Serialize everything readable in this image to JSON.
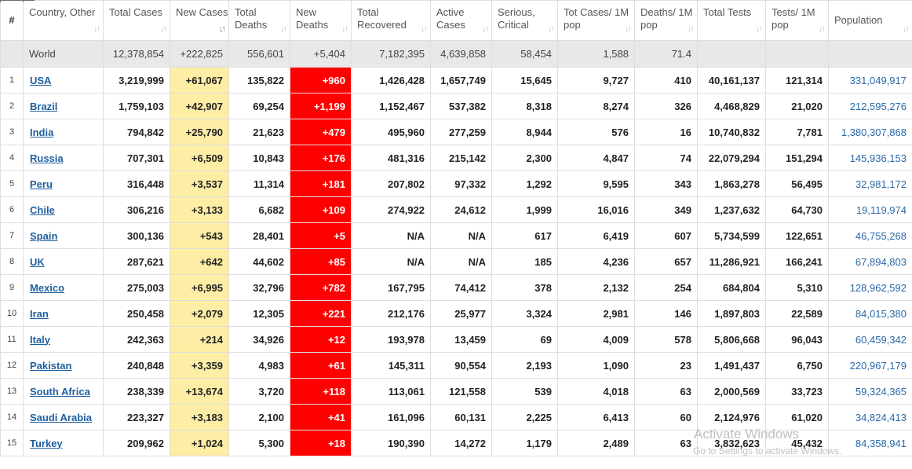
{
  "headers": [
    {
      "key": "idx",
      "label": "#"
    },
    {
      "key": "country",
      "label": "Country, Other",
      "sort": "neutral"
    },
    {
      "key": "total_cases",
      "label": "Total Cases",
      "sort": "neutral"
    },
    {
      "key": "new_cases",
      "label": "New Cases",
      "sort": "desc-active"
    },
    {
      "key": "total_deaths",
      "label": "Total Deaths",
      "sort": "neutral"
    },
    {
      "key": "new_deaths",
      "label": "New Deaths",
      "sort": "neutral"
    },
    {
      "key": "total_recovered",
      "label": "Total Recovered",
      "sort": "neutral"
    },
    {
      "key": "active_cases",
      "label": "Active Cases",
      "sort": "neutral"
    },
    {
      "key": "serious",
      "label": "Serious, Critical",
      "sort": "neutral"
    },
    {
      "key": "cases_1m",
      "label": "Tot Cases/ 1M pop",
      "sort": "neutral"
    },
    {
      "key": "deaths_1m",
      "label": "Deaths/ 1M pop",
      "sort": "neutral"
    },
    {
      "key": "total_tests",
      "label": "Total Tests",
      "sort": "neutral"
    },
    {
      "key": "tests_1m",
      "label": "Tests/ 1M pop",
      "sort": "neutral"
    },
    {
      "key": "population",
      "label": "Population",
      "sort": "neutral"
    }
  ],
  "world": {
    "country": "World",
    "total_cases": "12,378,854",
    "new_cases": "+222,825",
    "total_deaths": "556,601",
    "new_deaths": "+5,404",
    "total_recovered": "7,182,395",
    "active_cases": "4,639,858",
    "serious": "58,454",
    "cases_1m": "1,588",
    "deaths_1m": "71.4",
    "total_tests": "",
    "tests_1m": "",
    "population": ""
  },
  "rows": [
    {
      "idx": "1",
      "country": "USA",
      "total_cases": "3,219,999",
      "new_cases": "+61,067",
      "total_deaths": "135,822",
      "new_deaths": "+960",
      "total_recovered": "1,426,428",
      "active_cases": "1,657,749",
      "serious": "15,645",
      "cases_1m": "9,727",
      "deaths_1m": "410",
      "total_tests": "40,161,137",
      "tests_1m": "121,314",
      "population": "331,049,917"
    },
    {
      "idx": "2",
      "country": "Brazil",
      "total_cases": "1,759,103",
      "new_cases": "+42,907",
      "total_deaths": "69,254",
      "new_deaths": "+1,199",
      "total_recovered": "1,152,467",
      "active_cases": "537,382",
      "serious": "8,318",
      "cases_1m": "8,274",
      "deaths_1m": "326",
      "total_tests": "4,468,829",
      "tests_1m": "21,020",
      "population": "212,595,276"
    },
    {
      "idx": "3",
      "country": "India",
      "total_cases": "794,842",
      "new_cases": "+25,790",
      "total_deaths": "21,623",
      "new_deaths": "+479",
      "total_recovered": "495,960",
      "active_cases": "277,259",
      "serious": "8,944",
      "cases_1m": "576",
      "deaths_1m": "16",
      "total_tests": "10,740,832",
      "tests_1m": "7,781",
      "population": "1,380,307,868"
    },
    {
      "idx": "4",
      "country": "Russia",
      "total_cases": "707,301",
      "new_cases": "+6,509",
      "total_deaths": "10,843",
      "new_deaths": "+176",
      "total_recovered": "481,316",
      "active_cases": "215,142",
      "serious": "2,300",
      "cases_1m": "4,847",
      "deaths_1m": "74",
      "total_tests": "22,079,294",
      "tests_1m": "151,294",
      "population": "145,936,153"
    },
    {
      "idx": "5",
      "country": "Peru",
      "total_cases": "316,448",
      "new_cases": "+3,537",
      "total_deaths": "11,314",
      "new_deaths": "+181",
      "total_recovered": "207,802",
      "active_cases": "97,332",
      "serious": "1,292",
      "cases_1m": "9,595",
      "deaths_1m": "343",
      "total_tests": "1,863,278",
      "tests_1m": "56,495",
      "population": "32,981,172"
    },
    {
      "idx": "6",
      "country": "Chile",
      "total_cases": "306,216",
      "new_cases": "+3,133",
      "total_deaths": "6,682",
      "new_deaths": "+109",
      "total_recovered": "274,922",
      "active_cases": "24,612",
      "serious": "1,999",
      "cases_1m": "16,016",
      "deaths_1m": "349",
      "total_tests": "1,237,632",
      "tests_1m": "64,730",
      "population": "19,119,974"
    },
    {
      "idx": "7",
      "country": "Spain",
      "total_cases": "300,136",
      "new_cases": "+543",
      "total_deaths": "28,401",
      "new_deaths": "+5",
      "total_recovered": "N/A",
      "active_cases": "N/A",
      "serious": "617",
      "cases_1m": "6,419",
      "deaths_1m": "607",
      "total_tests": "5,734,599",
      "tests_1m": "122,651",
      "population": "46,755,268"
    },
    {
      "idx": "8",
      "country": "UK",
      "total_cases": "287,621",
      "new_cases": "+642",
      "total_deaths": "44,602",
      "new_deaths": "+85",
      "total_recovered": "N/A",
      "active_cases": "N/A",
      "serious": "185",
      "cases_1m": "4,236",
      "deaths_1m": "657",
      "total_tests": "11,286,921",
      "tests_1m": "166,241",
      "population": "67,894,803"
    },
    {
      "idx": "9",
      "country": "Mexico",
      "total_cases": "275,003",
      "new_cases": "+6,995",
      "total_deaths": "32,796",
      "new_deaths": "+782",
      "total_recovered": "167,795",
      "active_cases": "74,412",
      "serious": "378",
      "cases_1m": "2,132",
      "deaths_1m": "254",
      "total_tests": "684,804",
      "tests_1m": "5,310",
      "population": "128,962,592"
    },
    {
      "idx": "10",
      "country": "Iran",
      "total_cases": "250,458",
      "new_cases": "+2,079",
      "total_deaths": "12,305",
      "new_deaths": "+221",
      "total_recovered": "212,176",
      "active_cases": "25,977",
      "serious": "3,324",
      "cases_1m": "2,981",
      "deaths_1m": "146",
      "total_tests": "1,897,803",
      "tests_1m": "22,589",
      "population": "84,015,380"
    },
    {
      "idx": "11",
      "country": "Italy",
      "total_cases": "242,363",
      "new_cases": "+214",
      "total_deaths": "34,926",
      "new_deaths": "+12",
      "total_recovered": "193,978",
      "active_cases": "13,459",
      "serious": "69",
      "cases_1m": "4,009",
      "deaths_1m": "578",
      "total_tests": "5,806,668",
      "tests_1m": "96,043",
      "population": "60,459,342"
    },
    {
      "idx": "12",
      "country": "Pakistan",
      "total_cases": "240,848",
      "new_cases": "+3,359",
      "total_deaths": "4,983",
      "new_deaths": "+61",
      "total_recovered": "145,311",
      "active_cases": "90,554",
      "serious": "2,193",
      "cases_1m": "1,090",
      "deaths_1m": "23",
      "total_tests": "1,491,437",
      "tests_1m": "6,750",
      "population": "220,967,179"
    },
    {
      "idx": "13",
      "country": "South Africa",
      "total_cases": "238,339",
      "new_cases": "+13,674",
      "total_deaths": "3,720",
      "new_deaths": "+118",
      "total_recovered": "113,061",
      "active_cases": "121,558",
      "serious": "539",
      "cases_1m": "4,018",
      "deaths_1m": "63",
      "total_tests": "2,000,569",
      "tests_1m": "33,723",
      "population": "59,324,365"
    },
    {
      "idx": "14",
      "country": "Saudi Arabia",
      "total_cases": "223,327",
      "new_cases": "+3,183",
      "total_deaths": "2,100",
      "new_deaths": "+41",
      "total_recovered": "161,096",
      "active_cases": "60,131",
      "serious": "2,225",
      "cases_1m": "6,413",
      "deaths_1m": "60",
      "total_tests": "2,124,976",
      "tests_1m": "61,020",
      "population": "34,824,413"
    },
    {
      "idx": "15",
      "country": "Turkey",
      "total_cases": "209,962",
      "new_cases": "+1,024",
      "total_deaths": "5,300",
      "new_deaths": "+18",
      "total_recovered": "190,390",
      "active_cases": "14,272",
      "serious": "1,179",
      "cases_1m": "2,489",
      "deaths_1m": "63",
      "total_tests": "3,832,623",
      "tests_1m": "45,432",
      "population": "84,358,941"
    }
  ],
  "watermark": {
    "title": "Activate Windows",
    "subtitle": "Go to Settings to activate Windows."
  },
  "colors": {
    "new_cases_bg": "#fdeda5",
    "new_deaths_bg": "#ff0000",
    "link": "#1f5f9f",
    "population": "#2a68a8",
    "world_row_bg": "#e8e8e8"
  }
}
